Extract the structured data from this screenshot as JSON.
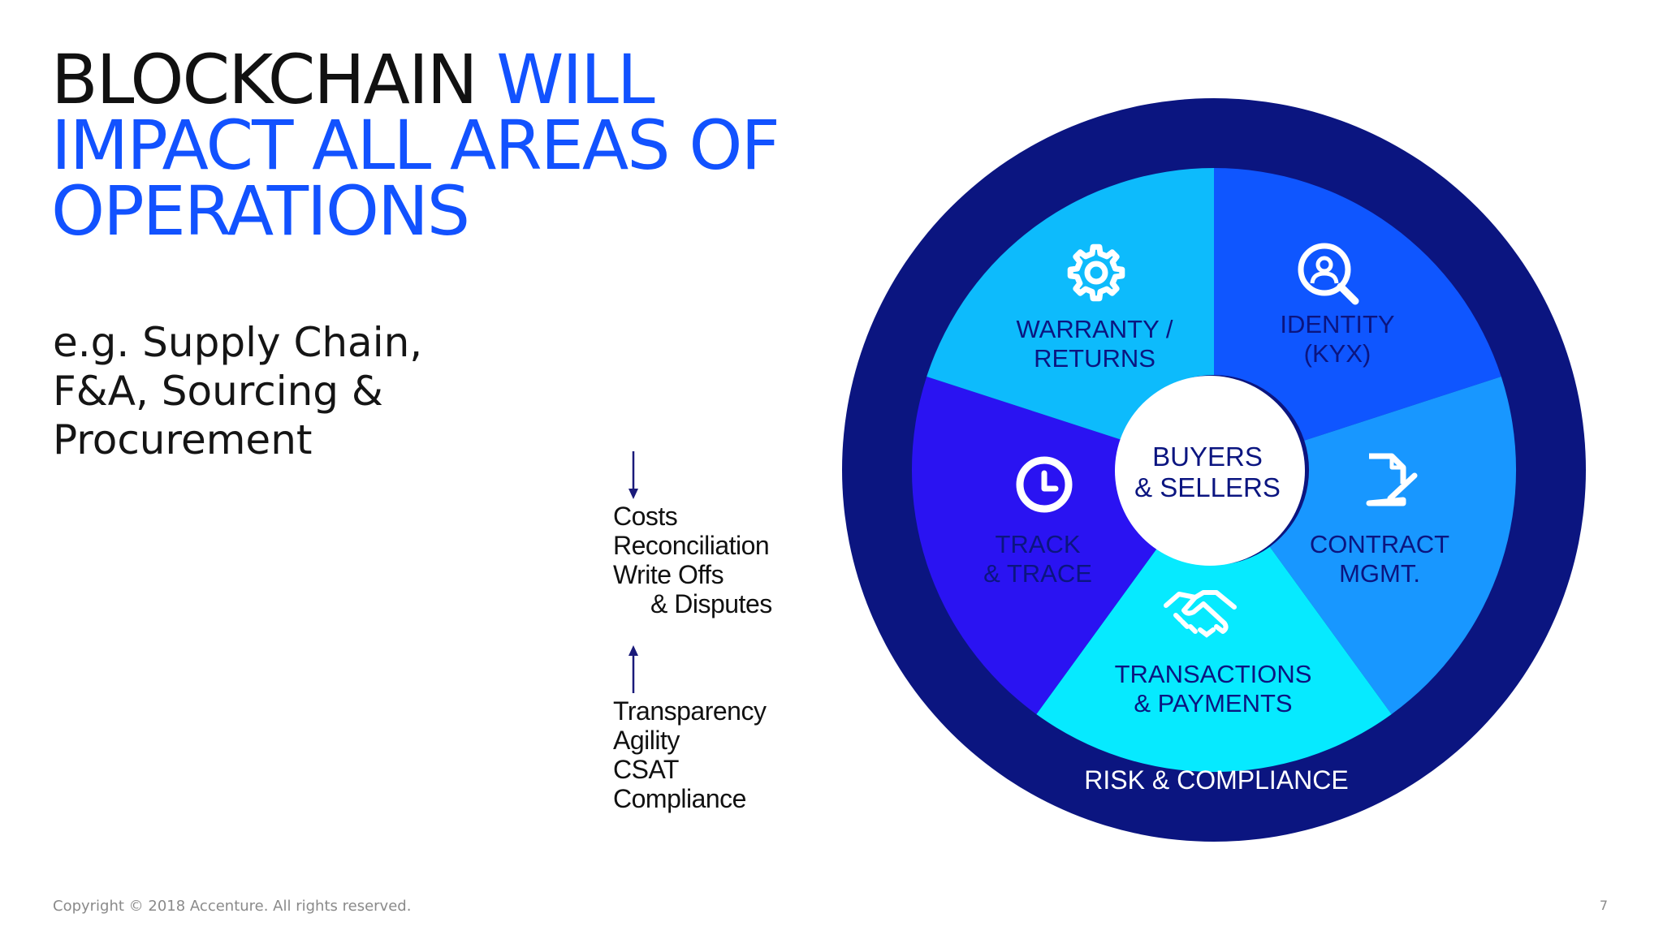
{
  "slide": {
    "title": {
      "part1": "BLOCKCHAIN",
      "part2": "WILL",
      "line2": "IMPACT ALL AREAS OF",
      "line3": "OPERATIONS"
    },
    "subtitle": {
      "line1": "e.g. Supply Chain,",
      "line2": "F&A, Sourcing &",
      "line3": "Procurement"
    },
    "decreases": [
      "Costs",
      "Reconciliation",
      "Write Offs",
      "& Disputes"
    ],
    "increases": [
      "Transparency",
      "Agility",
      "CSAT",
      "Compliance"
    ],
    "diagram": {
      "center": {
        "line1": "BUYERS",
        "line2": "& SELLERS"
      },
      "segments": {
        "warranty": {
          "line1": "WARRANTY /",
          "line2": "RETURNS",
          "icon": "gear-icon"
        },
        "identity": {
          "line1": "IDENTITY",
          "line2": "(KYX)",
          "icon": "identity-search-icon"
        },
        "contract": {
          "line1": "CONTRACT",
          "line2": "MGMT.",
          "icon": "document-edit-icon"
        },
        "transactions": {
          "line1": "TRANSACTIONS",
          "line2": "& PAYMENTS",
          "icon": "handshake-icon"
        },
        "track": {
          "line1": "TRACK",
          "line2": "& TRACE",
          "icon": "clock-icon"
        }
      },
      "outer_ring_label": "RISK & COMPLIANCE"
    },
    "footer": {
      "copyright": "Copyright © 2018 Accenture. All rights reserved.",
      "page_number": "7"
    },
    "colors": {
      "title_blue": "#1252ff",
      "ring_navy": "#0b1580",
      "warranty": "#0f56ff",
      "identity": "#1897ff",
      "contract": "#06eaff",
      "transactions": "#2a13f2",
      "track": "#0dbbfc",
      "segment_text": "#0b1580"
    }
  }
}
